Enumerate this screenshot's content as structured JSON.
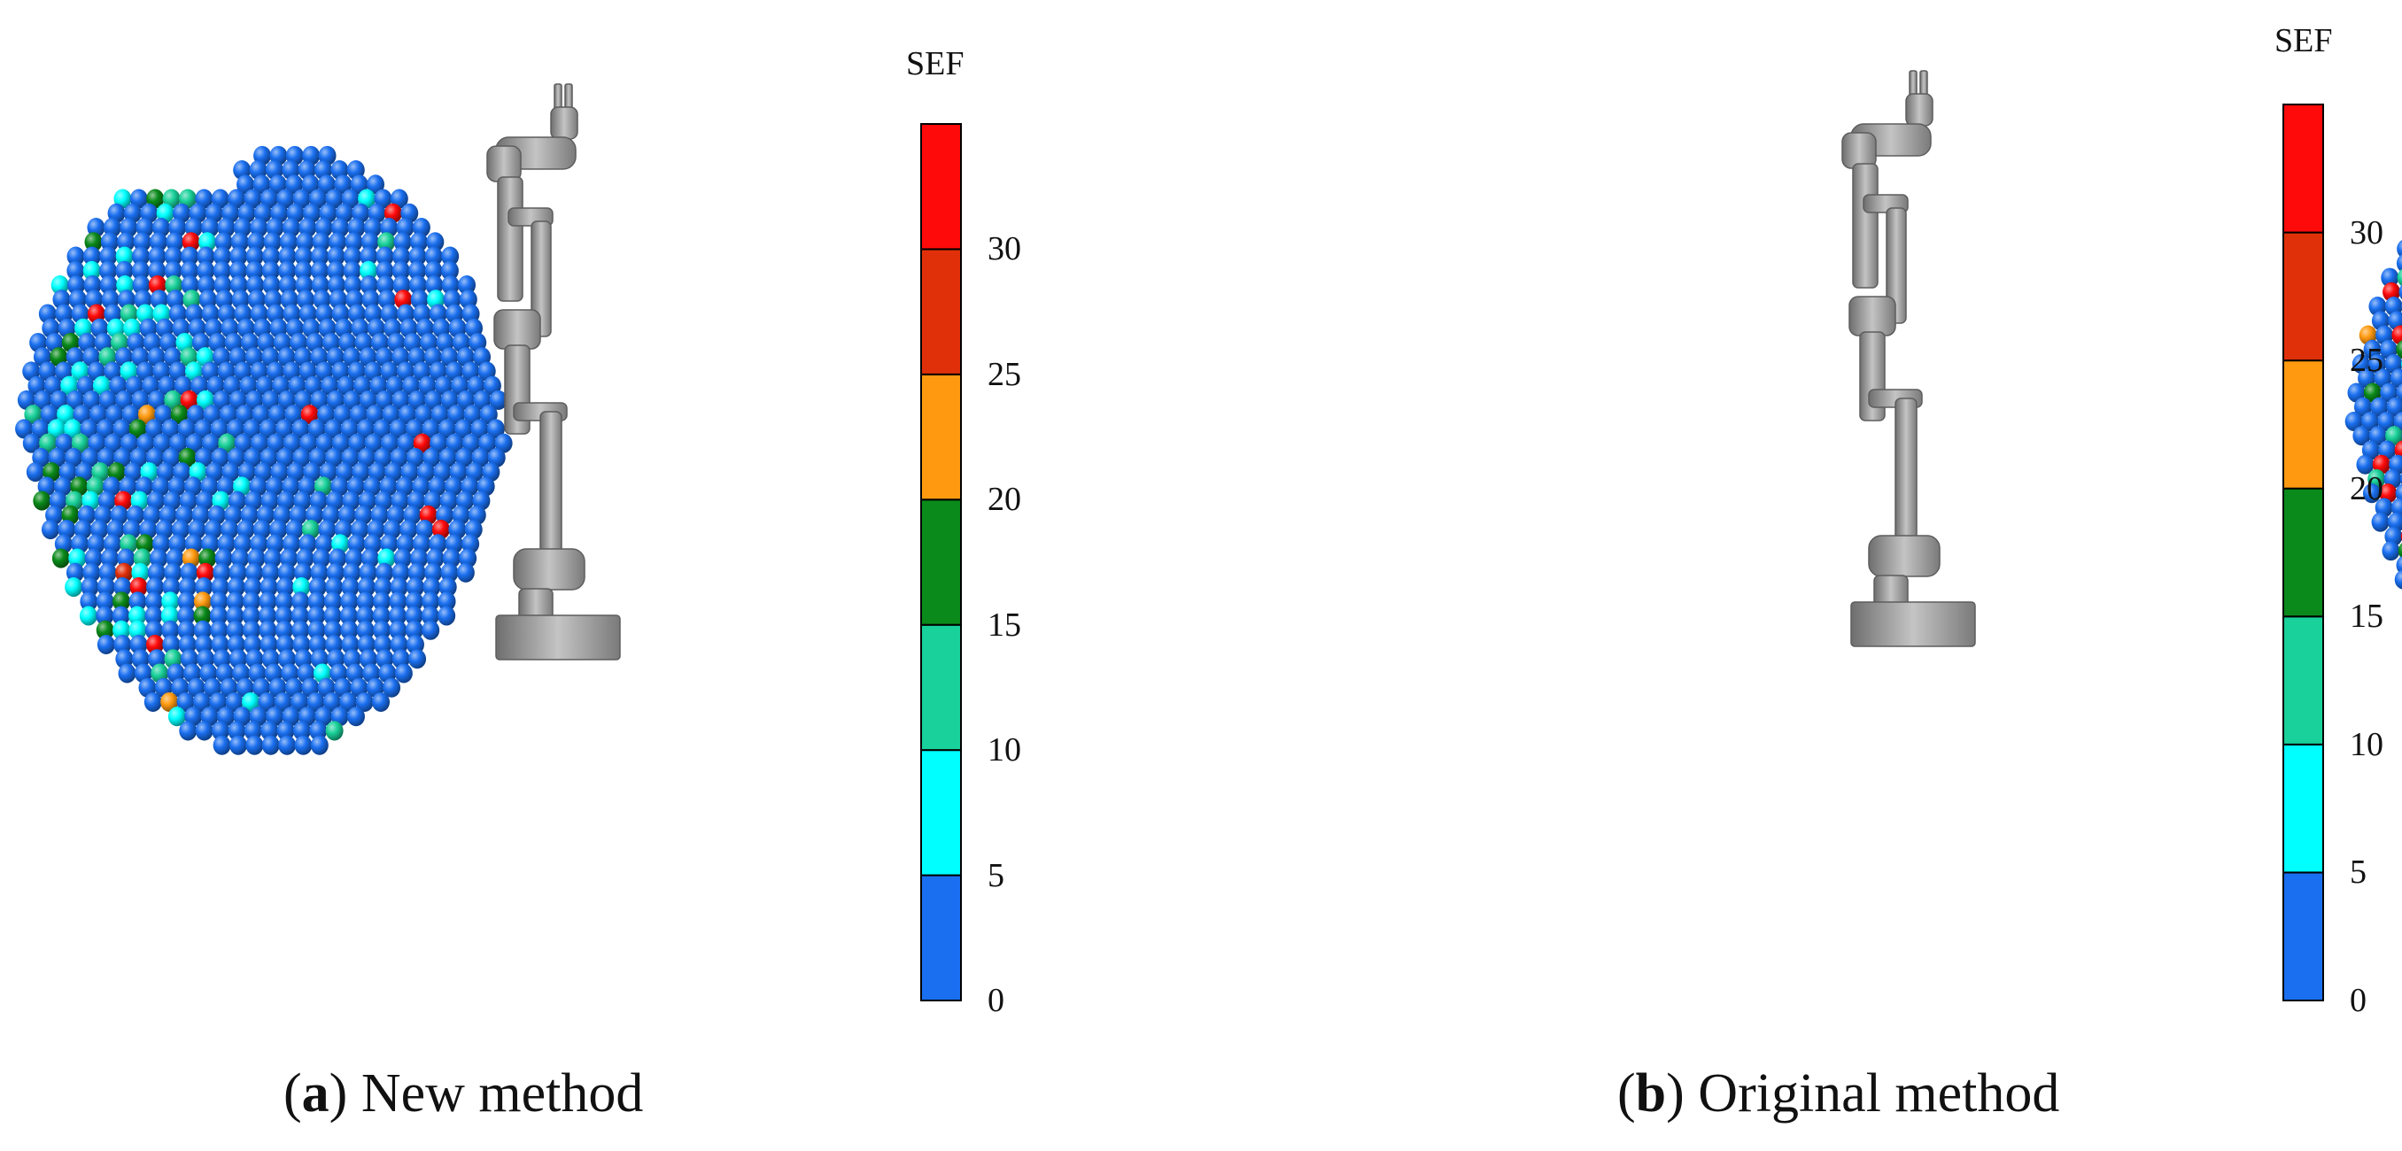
{
  "panels": [
    {
      "id": "a",
      "caption_letter": "a",
      "caption_text": "New method",
      "colorbar_title": "SEF"
    },
    {
      "id": "b",
      "caption_letter": "b",
      "caption_text": "Original method",
      "colorbar_title": "SEF"
    }
  ],
  "colorbar": {
    "ticks": [
      "0",
      "5",
      "10",
      "15",
      "20",
      "25",
      "30"
    ],
    "bins": [
      {
        "from": 0,
        "to": 5,
        "color": "#1a6ff0"
      },
      {
        "from": 5,
        "to": 10,
        "color": "#00ffff"
      },
      {
        "from": 10,
        "to": 15,
        "color": "#19d19a"
      },
      {
        "from": 15,
        "to": 20,
        "color": "#0a8a1a"
      },
      {
        "from": 20,
        "to": 25,
        "color": "#ff9a10"
      },
      {
        "from": 25,
        "to": 30,
        "color": "#e0300a"
      },
      {
        "from": 30,
        "to": 35,
        "color": "#ff0a0a"
      }
    ]
  },
  "colors": {
    "sphere_base": "#1f5fd6",
    "robot": "#9a9a9a"
  }
}
